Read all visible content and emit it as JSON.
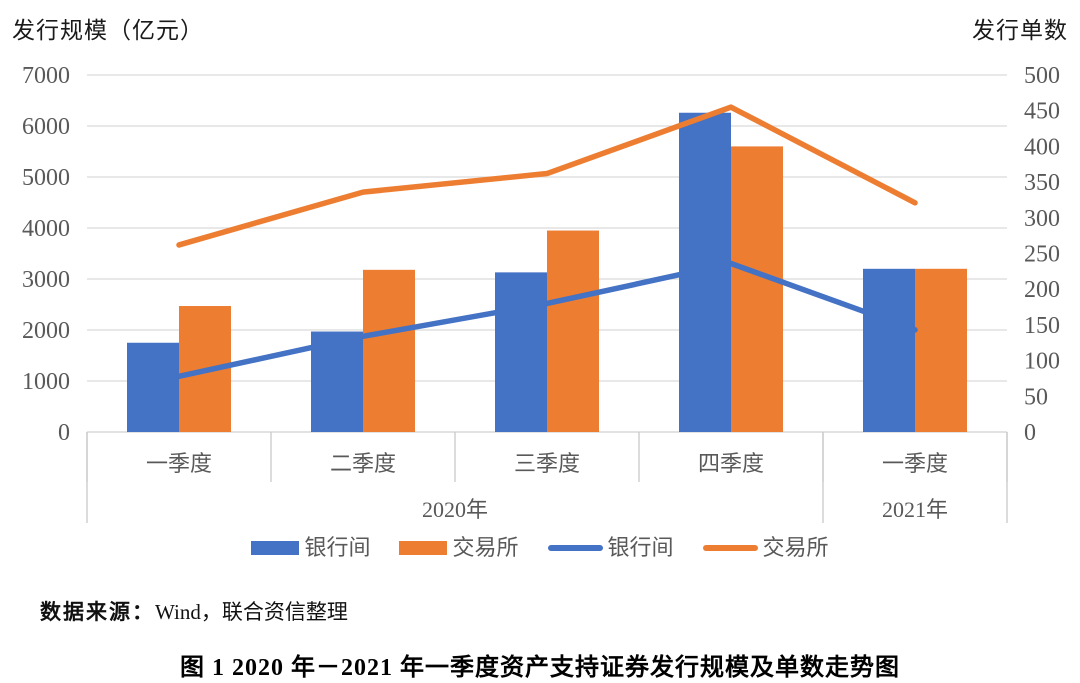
{
  "chart_data": {
    "type": "combo-bar-line",
    "title": "图 1 2020 年－2021 年一季度资产支持证券发行规模及单数走势图",
    "categories": [
      "一季度",
      "二季度",
      "三季度",
      "四季度",
      "一季度"
    ],
    "category_groups": [
      {
        "label": "2020年",
        "span": 4
      },
      {
        "label": "2021年",
        "span": 1
      }
    ],
    "left_axis": {
      "title": "发行规模（亿元）",
      "min": 0,
      "max": 7000,
      "step": 1000
    },
    "right_axis": {
      "title": "发行单数",
      "min": 0,
      "max": 500,
      "step": 50
    },
    "bar_series": [
      {
        "name": "银行间",
        "axis": "left",
        "color": "#4472C4",
        "values": [
          1750,
          1970,
          3130,
          6260,
          3200
        ]
      },
      {
        "name": "交易所",
        "axis": "left",
        "color": "#ED7D31",
        "values": [
          2470,
          3180,
          3950,
          5600,
          3200
        ]
      }
    ],
    "line_series": [
      {
        "name": "银行间",
        "axis": "right",
        "color": "#4472C4",
        "values": [
          78,
          134,
          180,
          236,
          143
        ]
      },
      {
        "name": "交易所",
        "axis": "right",
        "color": "#ED7D31",
        "values": [
          262,
          336,
          362,
          455,
          321
        ]
      }
    ],
    "legend": [
      {
        "type": "bar",
        "label": "银行间",
        "color": "#4472C4"
      },
      {
        "type": "bar",
        "label": "交易所",
        "color": "#ED7D31"
      },
      {
        "type": "line",
        "label": "银行间",
        "color": "#4472C4"
      },
      {
        "type": "line",
        "label": "交易所",
        "color": "#ED7D31"
      }
    ],
    "grid": true,
    "legend_position": "bottom",
    "colors": {
      "grid_line": "#D9D9D9",
      "axis_line": "#D0D0D0",
      "separator": "#C9C9C9",
      "tick_text": "#595959"
    }
  },
  "source": {
    "prefix": "数据来源：",
    "text": "Wind，联合资信整理"
  },
  "caption": "图 1 2020 年－2021 年一季度资产支持证券发行规模及单数走势图"
}
